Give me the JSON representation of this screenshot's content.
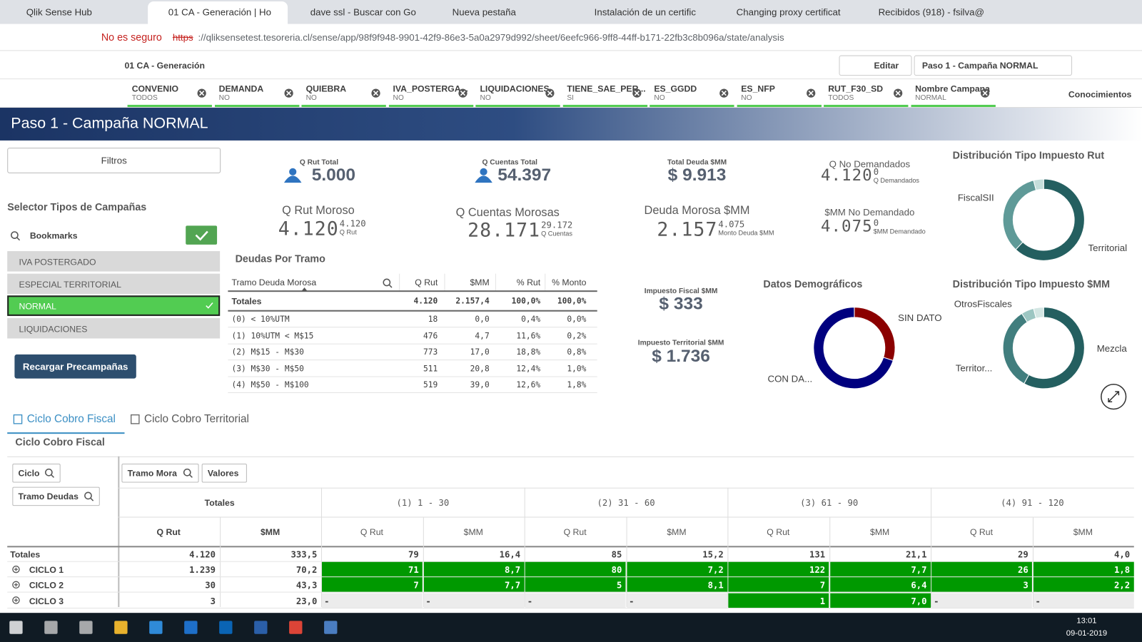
{
  "browser": {
    "tabs": [
      "Qlik Sense Hub",
      "01 CA - Generación | Ho",
      "dave ssl - Buscar con Go",
      "Nueva pestaña",
      "Instalación de un certific",
      "Changing proxy certificat",
      "Recibidos (918) - fsilva@"
    ],
    "security": "No es seguro",
    "url_scheme": "https",
    "url_rest": "://qliksensetest.tesoreria.cl/sense/app/98f9f948-9901-42f9-86e3-5a0a2979d992/sheet/6eefc966-9ff8-44ff-b171-22fb3c8b096a/state/analysis"
  },
  "toolbar": {
    "app": "01 CA - Generación",
    "edit": "Editar",
    "sheet": "Paso 1 - Campaña NORMAL"
  },
  "filters": [
    {
      "name": "CONVENIO",
      "value": "TODOS"
    },
    {
      "name": "DEMANDA",
      "value": "NO"
    },
    {
      "name": "QUIEBRA",
      "value": "NO"
    },
    {
      "name": "IVA_POSTERGA...",
      "value": "NO"
    },
    {
      "name": "LIQUIDACIONES",
      "value": "NO"
    },
    {
      "name": "TIENE_SAE_PER...",
      "value": "SI"
    },
    {
      "name": "ES_GGDD",
      "value": "NO"
    },
    {
      "name": "ES_NFP",
      "value": "NO"
    },
    {
      "name": "RUT_F30_SD",
      "value": "TODOS"
    },
    {
      "name": "Nombre Campana",
      "value": "NORMAL"
    }
  ],
  "insights": "Conocimientos",
  "sheet_title": "Paso 1 - Campaña NORMAL",
  "left_panel": {
    "filters_button": "Filtros",
    "selector_title": "Selector Tipos de Campañas",
    "bookmarks": "Bookmarks",
    "items": [
      "IVA POSTERGADO",
      "ESPECIAL TERRITORIAL",
      "NORMAL",
      "LIQUIDACIONES"
    ],
    "reload": "Recargar Precampañas"
  },
  "kpis_total": [
    {
      "label": "Q Rut Total",
      "value": "5.000"
    },
    {
      "label": "Q Cuentas Total",
      "value": "54.397"
    },
    {
      "label": "Total Deuda $MM",
      "value": "$ 9.913"
    }
  ],
  "kpis_compare": [
    {
      "label": "Q No Demandados",
      "value": "4.120",
      "sup": "0",
      "sub": "Q Demandados"
    },
    {
      "label": "Q Rut Moroso",
      "value": "4.120",
      "sup": "4.120",
      "sub": "Q Rut"
    },
    {
      "label": "Q Cuentas Morosas",
      "value": "28.171",
      "sup": "29.172",
      "sub": "Q Cuentas"
    },
    {
      "label": "Deuda Morosa $MM",
      "value": "2.157",
      "sup": "4.075",
      "sub": "Monto Deuda $MM"
    },
    {
      "label": "$MM No Demandado",
      "value": "4.075",
      "sup": "0",
      "sub": "$MM Demandado"
    }
  ],
  "kpis_tax": [
    {
      "label": "Impuesto Fiscal $MM",
      "value": "$ 333"
    },
    {
      "label": "Impuesto Territorial $MM",
      "value": "$ 1.736"
    }
  ],
  "debt_table": {
    "title": "Deudas Por Tramo",
    "headers": [
      "Tramo Deuda Morosa",
      "Q Rut",
      "$MM",
      "% Rut",
      "% Monto"
    ],
    "totals": [
      "Totales",
      "4.120",
      "2.157,4",
      "100,0%",
      "100,0%"
    ],
    "rows": [
      [
        "(0) < 10%UTM",
        "18",
        "0,0",
        "0,4%",
        "0,0%"
      ],
      [
        "(1) 10%UTM < M$15",
        "476",
        "4,7",
        "11,6%",
        "0,2%"
      ],
      [
        "(2) M$15 - M$30",
        "773",
        "17,0",
        "18,8%",
        "0,8%"
      ],
      [
        "(3) M$30 - M$50",
        "511",
        "20,8",
        "12,4%",
        "1,0%"
      ],
      [
        "(4) M$50 - M$100",
        "519",
        "39,0",
        "12,6%",
        "1,8%"
      ]
    ]
  },
  "donuts": [
    {
      "type": "pie",
      "title": "Distribución Tipo Impuesto Rut",
      "categories": [
        "Territorial",
        "FiscalSII",
        null
      ],
      "values": [
        62,
        34,
        4
      ],
      "colors": [
        "#245f60",
        "#5f9a98",
        "#c5dedb"
      ]
    },
    {
      "type": "pie",
      "title": "Datos Demográficos",
      "categories": [
        "SIN DATO",
        "CON DA..."
      ],
      "values": [
        30,
        70
      ],
      "colors": [
        "#8b0000",
        "#00007f"
      ]
    },
    {
      "type": "pie",
      "title": "Distribución Tipo Impuesto $MM",
      "categories": [
        "Mezcla",
        "Territor...",
        "OtrosFiscales",
        null
      ],
      "values": [
        58,
        33,
        5,
        4
      ],
      "colors": [
        "#245f60",
        "#417e7e",
        "#9cc6c2",
        "#d3e6e3"
      ]
    }
  ],
  "sheet_tabs": [
    "Ciclo Cobro Fiscal",
    "Ciclo Cobro Territorial"
  ],
  "pivot": {
    "title": "Ciclo Cobro Fiscal",
    "dims": [
      "Ciclo",
      "Tramo Deudas",
      "Tramo Mora",
      "Valores"
    ],
    "groups": [
      "Totales",
      "(1) 1 - 30",
      "(2) 31 - 60",
      "(3) 61 - 90",
      "(4) 91 - 120"
    ],
    "measures": [
      "Q Rut",
      "$MM"
    ],
    "rows": [
      {
        "label": "Totales",
        "cells": [
          "4.120",
          "333,5",
          "79",
          "16,4",
          "85",
          "15,2",
          "131",
          "21,1",
          "29",
          "4,0"
        ]
      },
      {
        "label": "CICLO 1",
        "cells": [
          "1.239",
          "70,2",
          "71",
          "8,7",
          "80",
          "7,2",
          "122",
          "7,7",
          "26",
          "1,8"
        ]
      },
      {
        "label": "CICLO 2",
        "cells": [
          "30",
          "43,3",
          "7",
          "7,7",
          "5",
          "8,1",
          "7",
          "6,4",
          "3",
          "2,2"
        ]
      },
      {
        "label": "CICLO 3",
        "cells": [
          "3",
          "23,0",
          "-",
          "-",
          "-",
          "-",
          "1",
          "7,0",
          "-",
          "-"
        ]
      }
    ]
  },
  "taskbar": {
    "time": "13:01",
    "date": "09-01-2019"
  }
}
